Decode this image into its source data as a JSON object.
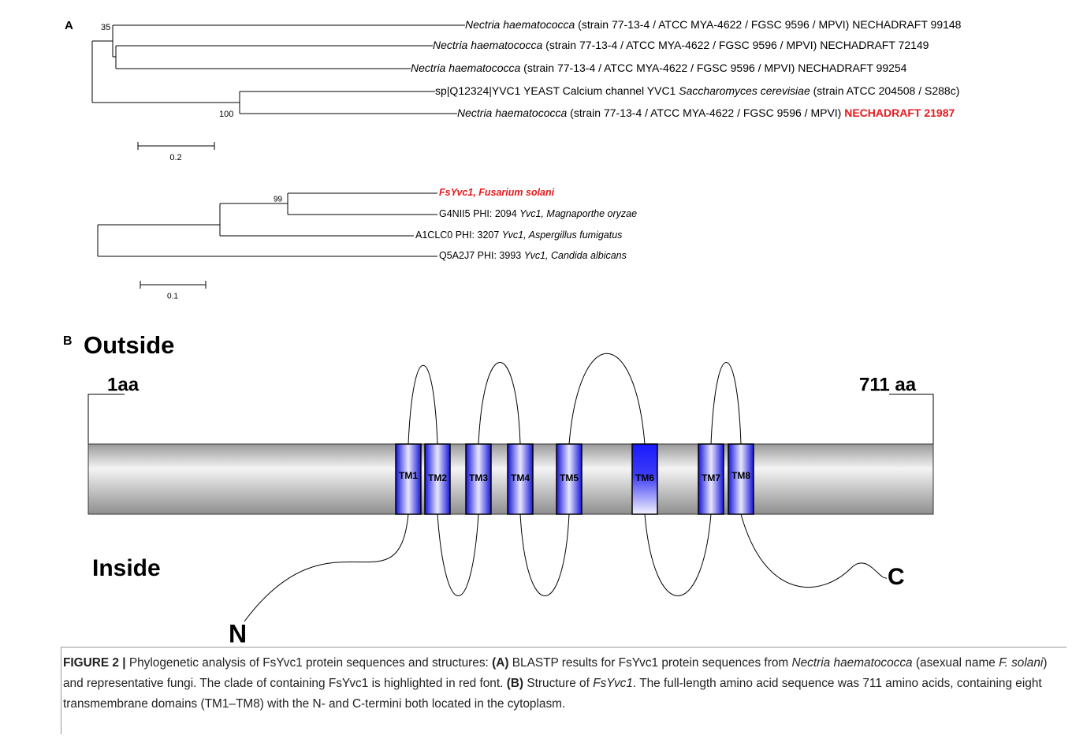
{
  "panel_a": {
    "label": "A",
    "tree_1": {
      "leaves": [
        [
          {
            "text": "Nectria haematococca",
            "italic": true
          },
          {
            "text": " (strain 77-13-4 / ATCC MYA-4622 / FGSC 9596 / MPVI) NECHADRAFT 99148"
          }
        ],
        [
          {
            "text": "Nectria haematococca",
            "italic": true
          },
          {
            "text": " (strain 77-13-4 / ATCC MYA-4622 / FGSC 9596 / MPVI) NECHADRAFT 72149"
          }
        ],
        [
          {
            "text": "Nectria haematococca",
            "italic": true
          },
          {
            "text": " (strain 77-13-4 / ATCC MYA-4622 / FGSC 9596 / MPVI) NECHADRAFT 99254"
          }
        ],
        [
          {
            "text": "sp|Q12324|YVC1 YEAST Calcium channel YVC1 "
          },
          {
            "text": "Saccharomyces cerevisiae",
            "italic": true
          },
          {
            "text": " (strain ATCC 204508 / S288c)"
          }
        ],
        [
          {
            "text": "Nectria haematococca",
            "italic": true
          },
          {
            "text": " (strain 77-13-4 / ATCC MYA-4622 / FGSC 9596 / MPVI) "
          },
          {
            "text": "NECHADRAFT 21987",
            "bold": true,
            "color": "#e8191d"
          }
        ]
      ],
      "support": [
        35,
        100
      ],
      "scale_label": 0.2
    },
    "tree_2": {
      "leaves": [
        [
          {
            "text": "FsYvc1, Fusarium solani",
            "italic": true,
            "bold": true,
            "color": "#e8191d"
          }
        ],
        [
          {
            "text": "G4NII5 PHI: 2094 "
          },
          {
            "text": "Yvc1, Magnaporthe oryzae",
            "italic": true
          }
        ],
        [
          {
            "text": "A1CLC0 PHI: 3207 "
          },
          {
            "text": "Yvc1, Aspergillus fumigatus",
            "italic": true
          }
        ],
        [
          {
            "text": "Q5A2J7 PHI: 3993 "
          },
          {
            "text": "Yvc1, Candida albicans",
            "italic": true
          }
        ]
      ],
      "support": [
        99
      ],
      "scale_label": 0.1
    }
  },
  "panel_b": {
    "label": "B",
    "outside": "Outside",
    "inside": "Inside",
    "start": "1aa",
    "end": "711 aa",
    "n_terminus": "N",
    "c_terminus": "C",
    "domains": [
      "TM1",
      "TM2",
      "TM3",
      "TM4",
      "TM5",
      "TM6",
      "TM7",
      "TM8"
    ]
  },
  "caption": [
    {
      "text": "FIGURE 2 |",
      "bold": true
    },
    {
      "text": " Phylogenetic analysis of FsYvc1 protein sequences and structures: "
    },
    {
      "text": "(A)",
      "bold": true
    },
    {
      "text": " BLASTP results for FsYvc1 protein sequences from "
    },
    {
      "text": "Nectria haematococca",
      "italic": true
    },
    {
      "text": " (asexual name "
    },
    {
      "text": "F. solani",
      "italic": true
    },
    {
      "text": ") and representative fungi. The clade of containing FsYvc1 is highlighted in red font. "
    },
    {
      "text": "(B)",
      "bold": true
    },
    {
      "text": " Structure of "
    },
    {
      "text": "FsYvc1",
      "italic": true
    },
    {
      "text": ". The full-length amino acid sequence was 711 amino acids, containing eight transmembrane domains (TM1–TM8) with the N- and C-termini both located in the cytoplasm."
    }
  ]
}
